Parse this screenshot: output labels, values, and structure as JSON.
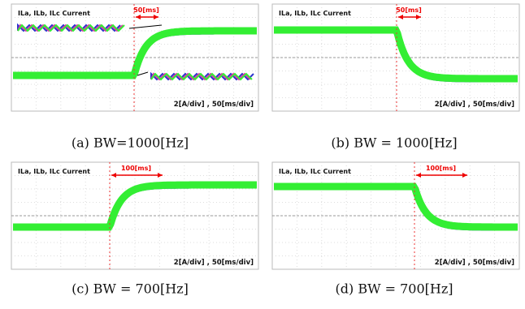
{
  "panels": [
    {
      "legend": "ILa, ILb, ILc Current",
      "marker": "50[ms]",
      "scale": "2[A/div] , 50[ms/div]",
      "caption": "(a)  BW=1000[Hz]"
    },
    {
      "legend": "ILa, ILb, ILc Current",
      "marker": "50[ms]",
      "scale": "2[A/div] , 50[ms/div]",
      "caption": "(b)  BW  =  1000[Hz]"
    },
    {
      "legend": "ILa, ILb, ILc Current",
      "marker": "100[ms]",
      "scale": "2[A/div] , 50[ms/div]",
      "caption": "(c)  BW  =  700[Hz]"
    },
    {
      "legend": "ILa, ILb, ILc Current",
      "marker": "100[ms]",
      "scale": "2[A/div] , 50[ms/div]",
      "caption": "(d)  BW  =  700[Hz]"
    }
  ]
}
